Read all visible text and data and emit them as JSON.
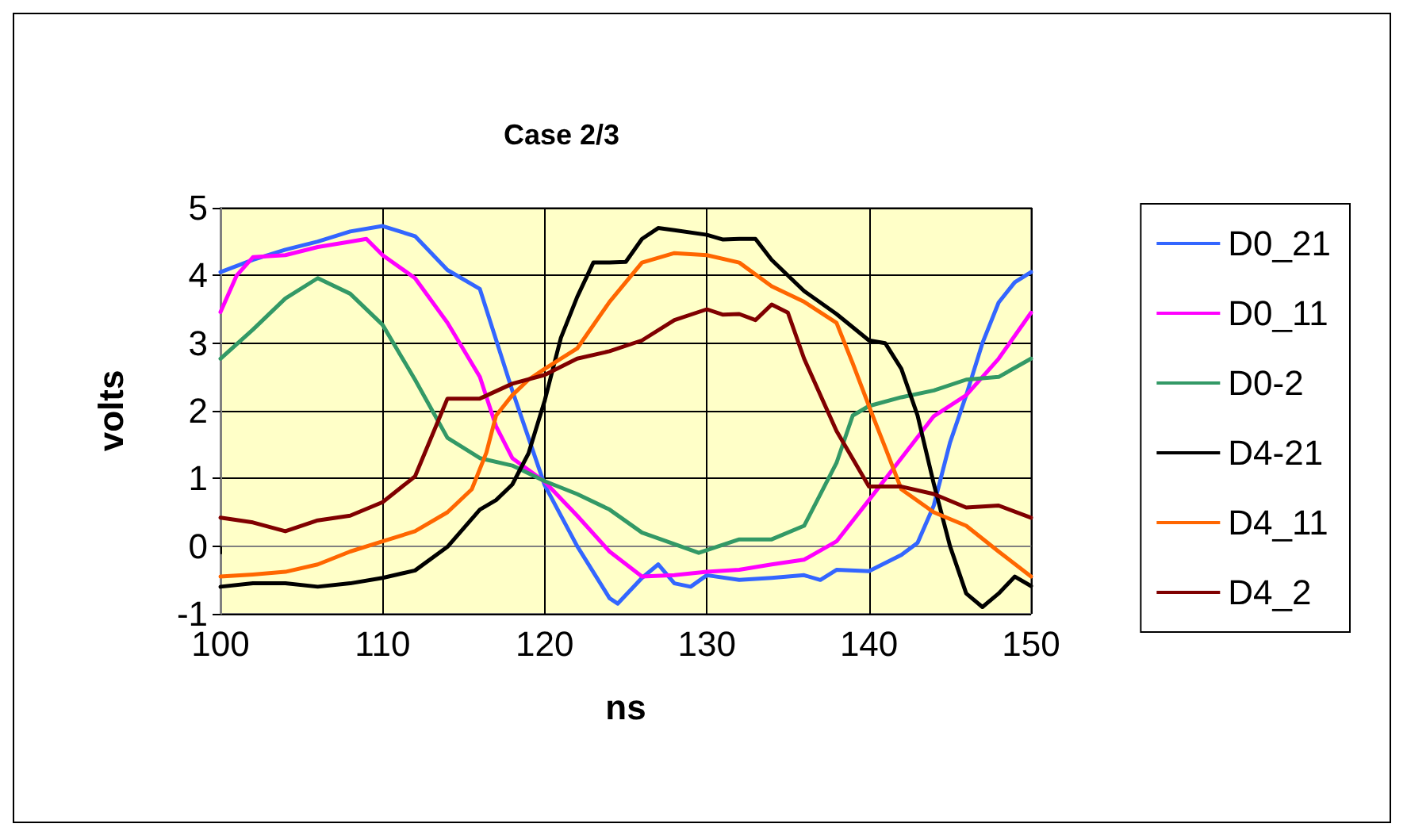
{
  "chart_data": {
    "type": "line",
    "title": "Case 2/3",
    "xlabel": "ns",
    "ylabel": "volts",
    "xlim": [
      100,
      150
    ],
    "xticks": [
      100,
      110,
      120,
      130,
      140,
      150
    ],
    "ylim": [
      -1,
      5
    ],
    "yticks": [
      -1,
      0,
      1,
      2,
      3,
      4,
      5
    ],
    "grid": true,
    "legend": "right",
    "marker": "none",
    "line_style": "solid",
    "series": [
      {
        "name": "D0_21",
        "color": "#3366ff",
        "x": [
          100,
          102,
          104,
          106,
          108,
          110,
          112,
          114,
          116,
          118,
          120,
          122,
          124,
          124.5,
          126,
          127,
          128,
          129,
          130,
          132,
          134,
          136,
          137,
          138,
          140,
          142,
          143,
          144,
          145,
          146,
          147,
          148,
          149,
          150
        ],
        "values": [
          4.05,
          4.23,
          4.38,
          4.5,
          4.65,
          4.73,
          4.58,
          4.08,
          3.8,
          2.3,
          0.9,
          0,
          -0.77,
          -0.85,
          -0.47,
          -0.27,
          -0.55,
          -0.6,
          -0.43,
          -0.5,
          -0.47,
          -0.43,
          -0.5,
          -0.35,
          -0.37,
          -0.13,
          0.05,
          0.6,
          1.53,
          2.23,
          3,
          3.6,
          3.9,
          4.05
        ]
      },
      {
        "name": "D0_11",
        "color": "#ff00ff",
        "x": [
          100,
          101,
          102,
          104,
          106,
          108,
          109,
          110,
          112,
          114,
          116,
          117,
          118,
          120,
          122,
          124,
          126,
          128,
          130,
          132,
          134,
          136,
          138,
          140,
          142,
          144,
          146,
          148,
          150
        ],
        "values": [
          3.46,
          4,
          4.27,
          4.3,
          4.42,
          4.5,
          4.54,
          4.3,
          3.96,
          3.3,
          2.5,
          1.77,
          1.3,
          0.95,
          0.45,
          -0.08,
          -0.45,
          -0.43,
          -0.38,
          -0.35,
          -0.27,
          -0.2,
          0.07,
          0.68,
          1.3,
          1.92,
          2.23,
          2.77,
          3.45
        ]
      },
      {
        "name": "D0-2",
        "color": "#339966",
        "x": [
          100,
          102,
          104,
          106,
          108,
          110,
          112,
          114,
          116,
          118,
          120,
          122,
          124,
          126,
          128,
          129.5,
          132,
          134,
          136,
          138,
          139,
          140,
          142,
          144,
          146,
          148,
          150
        ],
        "values": [
          2.77,
          3.2,
          3.66,
          3.96,
          3.73,
          3.27,
          2.46,
          1.6,
          1.3,
          1.19,
          0.96,
          0.77,
          0.54,
          0.2,
          0.03,
          -0.1,
          0.1,
          0.1,
          0.3,
          1.23,
          1.93,
          2.07,
          2.2,
          2.3,
          2.46,
          2.5,
          2.77
        ]
      },
      {
        "name": "D4-21",
        "color": "#000000",
        "x": [
          100,
          102,
          104,
          106,
          108,
          110,
          112,
          114,
          116,
          117,
          118,
          119,
          120,
          121,
          122,
          123,
          124,
          125,
          126,
          127,
          128,
          130,
          131,
          132,
          133,
          134,
          136,
          138,
          140,
          141,
          142,
          143,
          144,
          145,
          146,
          147,
          148,
          149,
          150
        ],
        "values": [
          -0.6,
          -0.55,
          -0.55,
          -0.6,
          -0.55,
          -0.47,
          -0.36,
          -0.01,
          0.54,
          0.68,
          0.91,
          1.37,
          2.15,
          3.08,
          3.68,
          4.19,
          4.19,
          4.2,
          4.54,
          4.7,
          4.67,
          4.6,
          4.53,
          4.54,
          4.54,
          4.23,
          3.77,
          3.43,
          3.04,
          3,
          2.62,
          1.93,
          0.92,
          0,
          -0.7,
          -0.9,
          -0.7,
          -0.45,
          -0.59
        ]
      },
      {
        "name": "D4_11",
        "color": "#ff6600",
        "x": [
          100,
          102,
          104,
          106,
          108,
          110,
          112,
          114,
          115.5,
          116.4,
          117,
          118,
          119,
          120,
          122,
          124,
          126,
          128,
          130,
          132,
          134,
          136,
          138,
          139,
          140,
          141,
          142,
          144,
          146,
          148,
          150
        ],
        "values": [
          -0.45,
          -0.42,
          -0.38,
          -0.27,
          -0.08,
          0.07,
          0.22,
          0.5,
          0.84,
          1.38,
          1.93,
          2.23,
          2.46,
          2.62,
          2.92,
          3.61,
          4.19,
          4.33,
          4.3,
          4.19,
          3.84,
          3.61,
          3.3,
          2.7,
          2.07,
          1.46,
          0.84,
          0.5,
          0.3,
          -0.08,
          -0.45
        ]
      },
      {
        "name": "D4_2",
        "color": "#800000",
        "x": [
          100,
          102,
          104,
          106,
          108,
          110,
          112,
          114,
          116,
          118,
          120,
          122,
          124,
          126,
          128,
          130,
          131,
          132,
          133,
          134,
          135,
          136,
          138,
          140,
          142,
          144,
          146,
          148,
          150
        ],
        "values": [
          0.42,
          0.35,
          0.22,
          0.38,
          0.45,
          0.65,
          1.03,
          2.18,
          2.18,
          2.4,
          2.53,
          2.77,
          2.88,
          3.04,
          3.34,
          3.5,
          3.42,
          3.43,
          3.34,
          3.57,
          3.45,
          2.77,
          1.7,
          0.88,
          0.88,
          0.77,
          0.57,
          0.6,
          0.42
        ]
      }
    ]
  }
}
